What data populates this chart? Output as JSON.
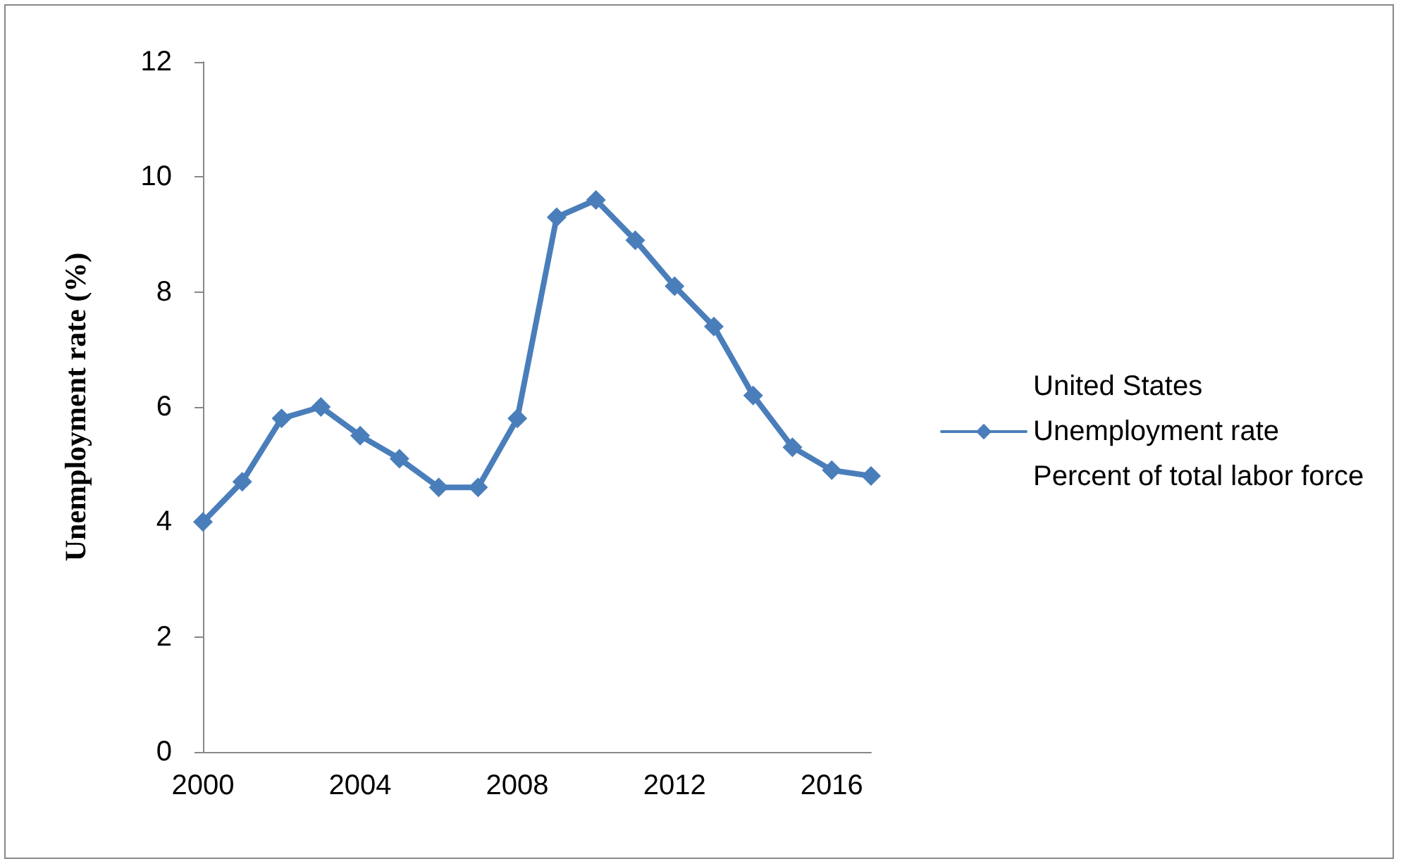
{
  "chart_data": {
    "type": "line",
    "ylabel": "Unemployment rate (%)",
    "categories": [
      "2000",
      null,
      null,
      null,
      "2004",
      null,
      null,
      null,
      "2008",
      null,
      null,
      null,
      "2012",
      null,
      null,
      null,
      "2016",
      null
    ],
    "series": [
      {
        "name": "United States Unemployment rate Percent of total labor force",
        "color": "#4a7ebb",
        "values": [
          4.0,
          4.7,
          5.8,
          6.0,
          5.5,
          5.1,
          4.6,
          4.6,
          5.8,
          9.3,
          9.6,
          8.9,
          8.1,
          7.4,
          6.2,
          5.3,
          4.9,
          4.8
        ]
      }
    ],
    "ylim": [
      0,
      12
    ],
    "yticks": [
      0,
      2,
      4,
      6,
      8,
      10,
      12
    ],
    "grid": false,
    "legend": "right",
    "marker": "diamond",
    "line_style": "solid"
  }
}
